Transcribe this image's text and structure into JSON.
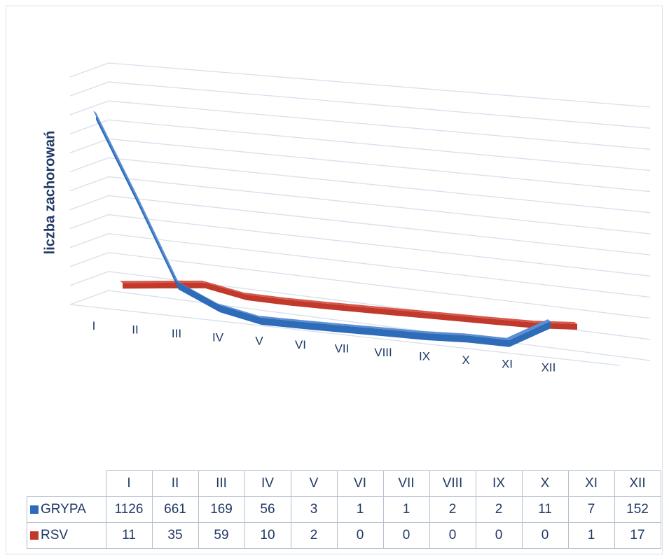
{
  "chart_data": {
    "type": "line",
    "style": "3d-ribbon",
    "ylabel": "liczba zachorowań",
    "categories": [
      "I",
      "II",
      "III",
      "IV",
      "V",
      "VI",
      "VII",
      "VIII",
      "IX",
      "X",
      "XI",
      "XII"
    ],
    "series": [
      {
        "name": "GRYPA",
        "color": "#2e6bb8",
        "values": [
          1126,
          661,
          169,
          56,
          3,
          1,
          1,
          2,
          2,
          11,
          7,
          152
        ]
      },
      {
        "name": "RSV",
        "color": "#c0392b",
        "values": [
          11,
          35,
          59,
          10,
          2,
          0,
          0,
          0,
          0,
          0,
          1,
          17
        ]
      }
    ],
    "ylim": [
      0,
      1200
    ],
    "grid": true,
    "data_table": true
  }
}
